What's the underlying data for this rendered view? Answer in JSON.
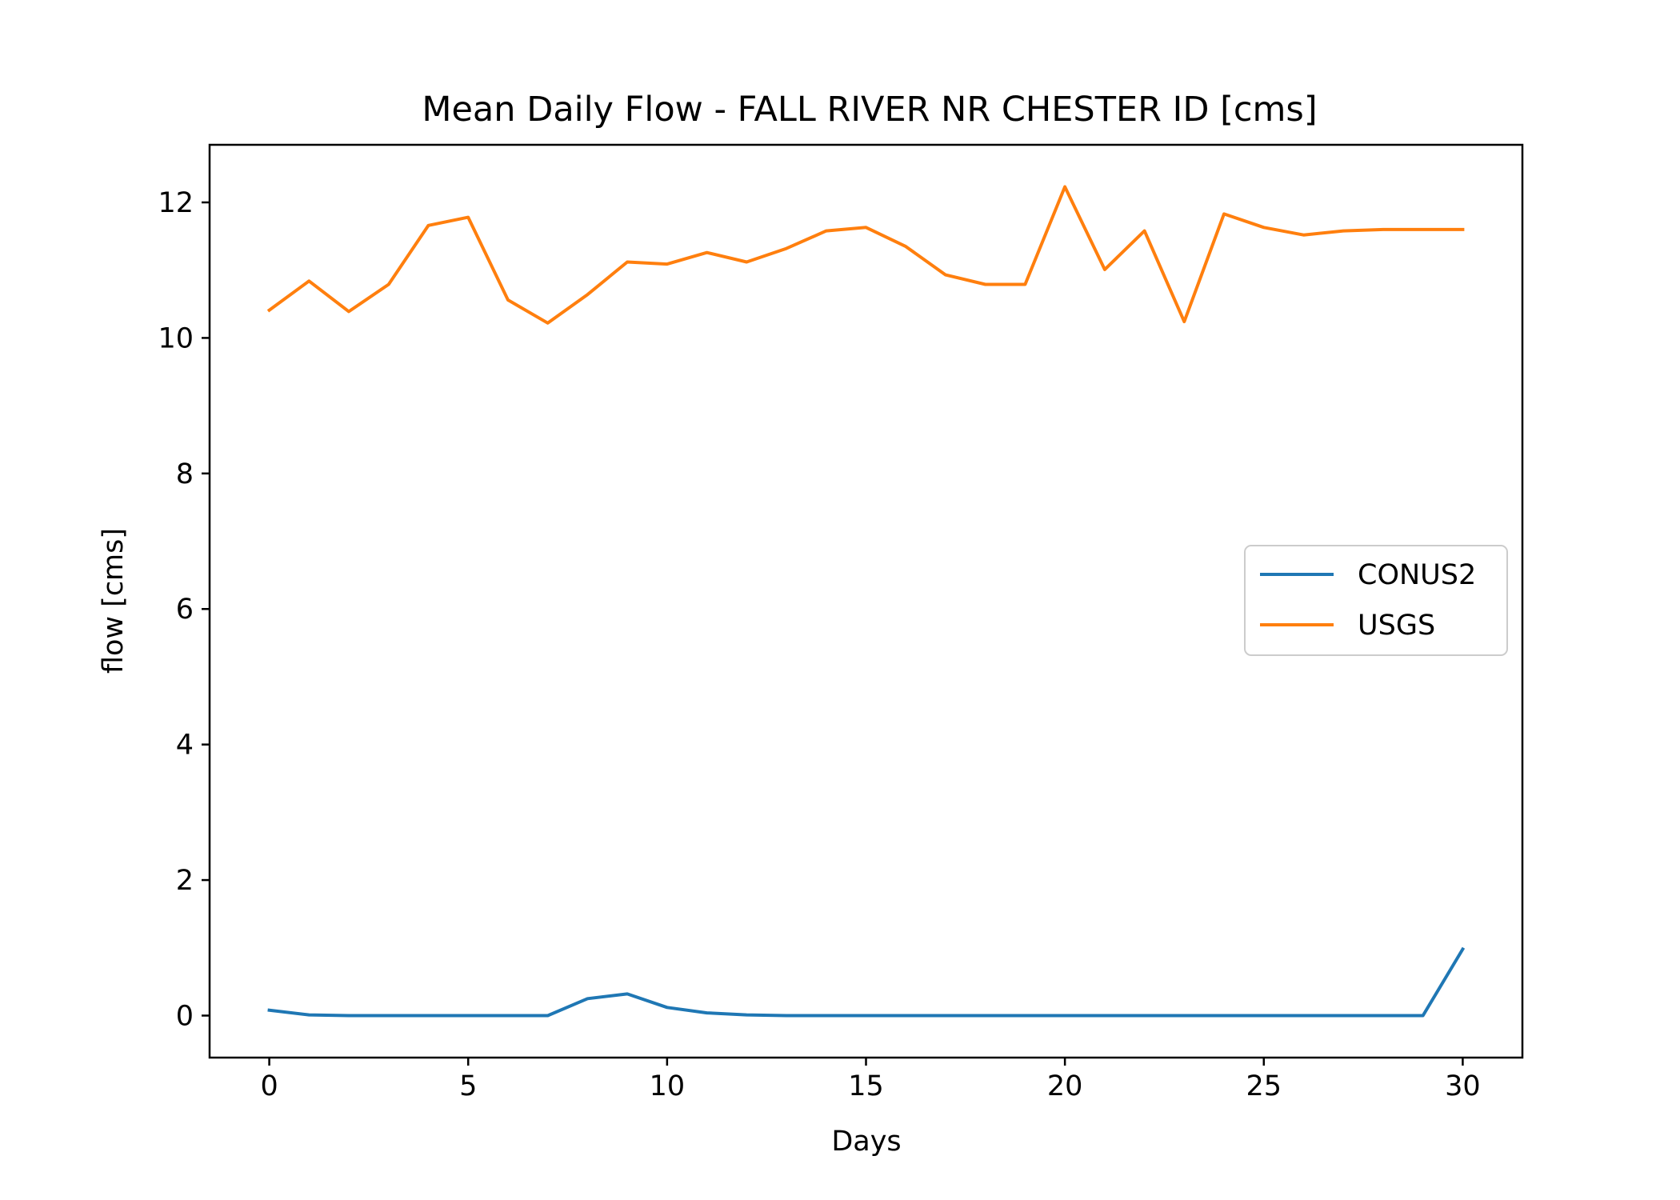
{
  "chart_data": {
    "type": "line",
    "title": "Mean Daily Flow - FALL RIVER NR CHESTER ID [cms]",
    "xlabel": "Days",
    "ylabel": "flow [cms]",
    "xlim": [
      -1.5,
      31.5
    ],
    "ylim": [
      -0.62,
      12.85
    ],
    "xticks": [
      0,
      5,
      10,
      15,
      20,
      25,
      30
    ],
    "yticks": [
      0,
      2,
      4,
      6,
      8,
      10,
      12
    ],
    "grid": false,
    "legend_position": "center-right",
    "x": [
      0,
      1,
      2,
      3,
      4,
      5,
      6,
      7,
      8,
      9,
      10,
      11,
      12,
      13,
      14,
      15,
      16,
      17,
      18,
      19,
      20,
      21,
      22,
      23,
      24,
      25,
      26,
      27,
      28,
      29,
      30
    ],
    "series": [
      {
        "name": "CONUS2",
        "color": "#1f77b4",
        "values": [
          0.08,
          0.01,
          0.0,
          0.0,
          0.0,
          0.0,
          0.0,
          0.0,
          0.25,
          0.32,
          0.12,
          0.04,
          0.01,
          0.0,
          0.0,
          0.0,
          0.0,
          0.0,
          0.0,
          0.0,
          0.0,
          0.0,
          0.0,
          0.0,
          0.0,
          0.0,
          0.0,
          0.0,
          0.0,
          0.0,
          0.98
        ]
      },
      {
        "name": "USGS",
        "color": "#ff7f0e",
        "values": [
          10.41,
          10.84,
          10.39,
          10.79,
          11.66,
          11.78,
          10.56,
          10.22,
          10.64,
          11.12,
          11.09,
          11.26,
          11.12,
          11.32,
          11.58,
          11.63,
          11.35,
          10.93,
          10.79,
          10.79,
          12.23,
          11.01,
          11.58,
          10.24,
          11.83,
          11.63,
          11.52,
          11.58,
          11.6,
          11.6,
          11.6
        ]
      }
    ]
  }
}
